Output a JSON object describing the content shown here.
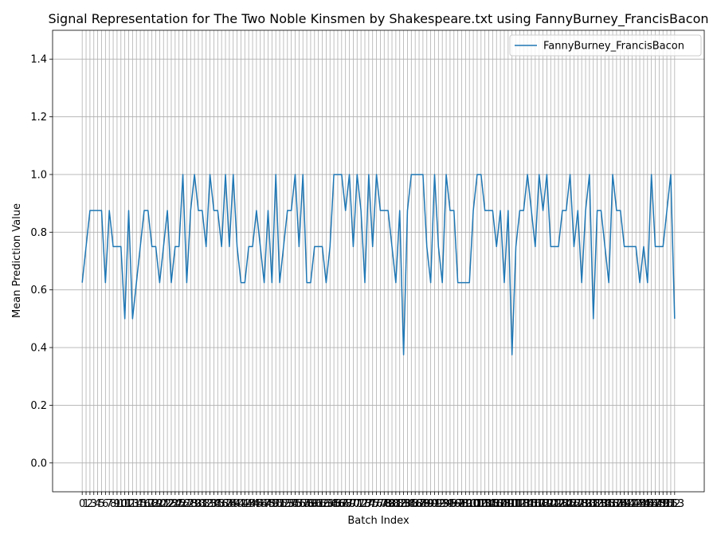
{
  "chart_data": {
    "type": "line",
    "title": "Signal Representation for The Two Noble Kinsmen by Shakespeare.txt using FannyBurney_FrancisBacon",
    "xlabel": "Batch Index",
    "ylabel": "Mean Prediction Value",
    "x": [
      0,
      1,
      2,
      3,
      4,
      5,
      6,
      7,
      8,
      9,
      10,
      11,
      12,
      13,
      14,
      15,
      16,
      17,
      18,
      19,
      20,
      21,
      22,
      23,
      24,
      25,
      26,
      27,
      28,
      29,
      30,
      31,
      32,
      33,
      34,
      35,
      36,
      37,
      38,
      39,
      40,
      41,
      42,
      43,
      44,
      45,
      46,
      47,
      48,
      49,
      50,
      51,
      52,
      53,
      54,
      55,
      56,
      57,
      58,
      59,
      60,
      61,
      62,
      63,
      64,
      65,
      66,
      67,
      68,
      69,
      70,
      71,
      72,
      73,
      74,
      75,
      76,
      77,
      78,
      79,
      80,
      81,
      82,
      83,
      84,
      85,
      86,
      87,
      88,
      89,
      90,
      91,
      92,
      93,
      94,
      95,
      96,
      97,
      98,
      99,
      100,
      101,
      102,
      103,
      104,
      105,
      106,
      107,
      108,
      109,
      110,
      111,
      112,
      113,
      114,
      115,
      116,
      117,
      118,
      119,
      120,
      121,
      122,
      123,
      124,
      125,
      126,
      127,
      128,
      129,
      130,
      131,
      132,
      133,
      134,
      135,
      136,
      137,
      138,
      139,
      140,
      141,
      142,
      143,
      144,
      145,
      146,
      147,
      148,
      149,
      150,
      151,
      152,
      153
    ],
    "series": [
      {
        "name": "FannyBurney_FrancisBacon",
        "color": "#1f77b4",
        "values": [
          0.625,
          0.75,
          0.875,
          0.875,
          0.875,
          0.875,
          0.625,
          0.875,
          0.75,
          0.75,
          0.75,
          0.5,
          0.875,
          0.5,
          0.625,
          0.75,
          0.875,
          0.875,
          0.75,
          0.75,
          0.625,
          0.75,
          0.875,
          0.625,
          0.75,
          0.75,
          1,
          0.625,
          0.875,
          1,
          0.875,
          0.875,
          0.75,
          1,
          0.875,
          0.875,
          0.75,
          1,
          0.75,
          1,
          0.75,
          0.625,
          0.625,
          0.75,
          0.75,
          0.875,
          0.75,
          0.625,
          0.875,
          0.625,
          1,
          0.625,
          0.75,
          0.875,
          0.875,
          1,
          0.75,
          1,
          0.625,
          0.625,
          0.75,
          0.75,
          0.75,
          0.625,
          0.75,
          1,
          1,
          1,
          0.875,
          1,
          0.75,
          1,
          0.875,
          0.625,
          1,
          0.75,
          1,
          0.875,
          0.875,
          0.875,
          0.75,
          0.625,
          0.875,
          0.375,
          0.875,
          1,
          1,
          1,
          1,
          0.75,
          0.625,
          1,
          0.75,
          0.625,
          1,
          0.875,
          0.875,
          0.625,
          0.625,
          0.625,
          0.625,
          0.875,
          1,
          1,
          0.875,
          0.875,
          0.875,
          0.75,
          0.875,
          0.625,
          0.875,
          0.375,
          0.75,
          0.875,
          0.875,
          1,
          0.875,
          0.75,
          1,
          0.875,
          1,
          0.75,
          0.75,
          0.75,
          0.875,
          0.875,
          1,
          0.75,
          0.875,
          0.625,
          0.875,
          1,
          0.5,
          0.875,
          0.875,
          0.75,
          0.625,
          1,
          0.875,
          0.875,
          0.75,
          0.75,
          0.75,
          0.75,
          0.625,
          0.75,
          0.625,
          1,
          0.75,
          0.75,
          0.75,
          0.875,
          1,
          0.5
        ]
      }
    ],
    "xlim": [
      -7.65,
      160.65
    ],
    "xticks": [
      0,
      1,
      2,
      3,
      4,
      5,
      6,
      7,
      8,
      9,
      10,
      11,
      12,
      13,
      14,
      15,
      16,
      17,
      18,
      19,
      20,
      21,
      22,
      23,
      24,
      25,
      26,
      27,
      28,
      29,
      30,
      31,
      32,
      33,
      34,
      35,
      36,
      37,
      38,
      39,
      40,
      41,
      42,
      43,
      44,
      45,
      46,
      47,
      48,
      49,
      50,
      51,
      52,
      53,
      54,
      55,
      56,
      57,
      58,
      59,
      60,
      61,
      62,
      63,
      64,
      65,
      66,
      67,
      68,
      69,
      70,
      71,
      72,
      73,
      74,
      75,
      76,
      77,
      78,
      79,
      80,
      81,
      82,
      83,
      84,
      85,
      86,
      87,
      88,
      89,
      90,
      91,
      92,
      93,
      94,
      95,
      96,
      97,
      98,
      99,
      100,
      101,
      102,
      103,
      104,
      105,
      106,
      107,
      108,
      109,
      110,
      111,
      112,
      113,
      114,
      115,
      116,
      117,
      118,
      119,
      120,
      121,
      122,
      123,
      124,
      125,
      126,
      127,
      128,
      129,
      130,
      131,
      132,
      133,
      134,
      135,
      136,
      137,
      138,
      139,
      140,
      141,
      142,
      143,
      144,
      145,
      146,
      147,
      148,
      149,
      150,
      151,
      152,
      153
    ],
    "ylim": [
      -0.1,
      1.5
    ],
    "yticks": [
      {
        "value": 0,
        "label": "0.0"
      },
      {
        "value": 0.2,
        "label": "0.2"
      },
      {
        "value": 0.4,
        "label": "0.4"
      },
      {
        "value": 0.6,
        "label": "0.6"
      },
      {
        "value": 0.8,
        "label": "0.8"
      },
      {
        "value": 1.0,
        "label": "1.0"
      },
      {
        "value": 1.2,
        "label": "1.2"
      },
      {
        "value": 1.4,
        "label": "1.4"
      }
    ],
    "grid": true,
    "legend": "upper right"
  }
}
